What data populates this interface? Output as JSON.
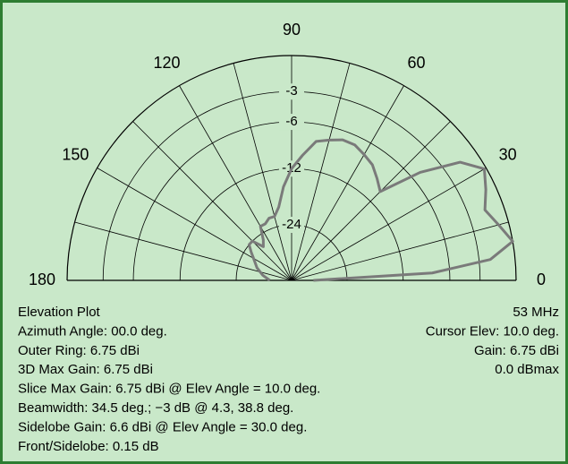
{
  "chart_data": {
    "type": "polar",
    "angle_ticks": [
      0,
      30,
      60,
      90,
      120,
      150,
      180
    ],
    "r_ticks": [
      -3,
      -6,
      -12,
      -24
    ],
    "rlim": [
      -40,
      0
    ],
    "series": [
      {
        "color": "#7a7a7a",
        "theta": [
          0,
          3,
          6,
          10,
          15,
          20,
          25,
          30,
          35,
          40,
          45,
          50,
          55,
          60,
          65,
          70,
          75,
          80,
          85,
          90,
          95,
          100,
          105,
          110,
          115,
          120,
          125,
          130,
          135,
          140,
          145,
          150,
          160,
          170,
          180
        ],
        "values": [
          -40,
          -8,
          -2,
          0,
          -0.8,
          -1.5,
          -0.8,
          -0.15,
          -1.5,
          -5,
          -10,
          -9,
          -8,
          -7.5,
          -7,
          -7,
          -7.5,
          -8,
          -10,
          -12,
          -15,
          -19,
          -21,
          -21,
          -22,
          -22,
          -26,
          -28,
          -24,
          -24,
          -26,
          -28,
          -31,
          -35,
          -40
        ]
      }
    ],
    "info_left": [
      "Elevation Plot",
      "Azimuth Angle: 00.0 deg.",
      "Outer Ring: 6.75 dBi",
      "3D Max Gain: 6.75 dBi",
      "Slice Max Gain: 6.75 dBi @ Elev Angle = 10.0 deg.",
      "Beamwidth: 34.5 deg.; −3 dB @ 4.3, 38.8 deg.",
      "Sidelobe Gain: 6.6 dBi @ Elev Angle = 30.0 deg.",
      "Front/Sidelobe: 0.15 dB"
    ],
    "info_right": [
      "53 MHz",
      "Cursor Elev: 10.0 deg.",
      "Gain: 6.75 dBi",
      "0.0 dBmax"
    ]
  }
}
